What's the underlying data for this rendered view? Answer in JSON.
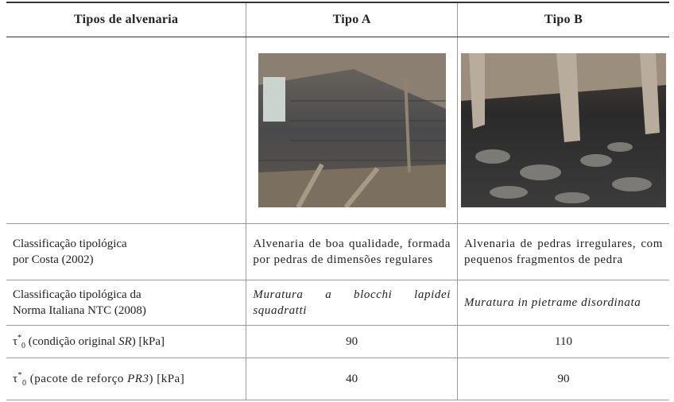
{
  "table": {
    "header": [
      "Tipos de alvenaria",
      "Tipo A",
      "Tipo B"
    ],
    "rows": [
      {
        "label": [
          "Classificação tipológica",
          "por Costa (2002)"
        ],
        "cells": [
          "Alvenaria de boa qualidade, formada por pedras de dimensões regulares",
          "Alvenaria de pedras irregulares, com pequenos fragmentos de pedra"
        ]
      },
      {
        "label": [
          "Classificação tipológica da",
          "Norma Italiana NTC (2008)"
        ],
        "cells": [
          "Muratura a blocchi lapidei squadratti",
          "Muratura in pietrame disordinata"
        ]
      },
      {
        "label": {
          "symbol": "τ",
          "sup": "*",
          "sub": "0",
          "text": " (condição original ",
          "italic": "SR",
          "end": ") [kPa]"
        },
        "cells": [
          90,
          110
        ]
      },
      {
        "label": {
          "symbol": "τ",
          "sup": "*",
          "sub": "0",
          "text": " (pacote de reforço ",
          "italic": "PR3",
          "end": ") [kPa]"
        },
        "cells": [
          40,
          90
        ]
      }
    ]
  }
}
